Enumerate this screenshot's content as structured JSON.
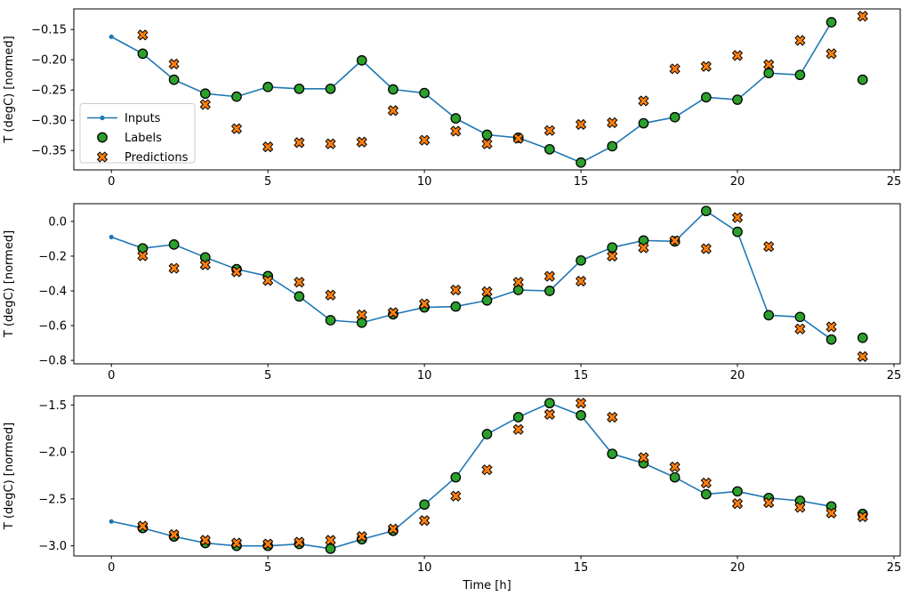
{
  "figure": {
    "xlabel": "Time [h]",
    "ylabel": "T (degC) [normed]",
    "background": "#ffffff",
    "colors": {
      "inputs_line": "#1f77b4",
      "labels_fill": "#2ca02c",
      "predictions_fill": "#ff7f0e",
      "marker_edge": "#000000",
      "axis": "#000000",
      "legend_border": "#cccccc",
      "legend_bg": "#ffffff"
    },
    "legend": {
      "position": "upper-left-of-first-subplot",
      "entries": [
        {
          "label": "Inputs",
          "marker": "line-dot",
          "color": "#1f77b4"
        },
        {
          "label": "Labels",
          "marker": "circle",
          "color": "#2ca02c"
        },
        {
          "label": "Predictions",
          "marker": "X",
          "color": "#ff7f0e"
        }
      ]
    }
  },
  "chart_data": [
    {
      "type": "line",
      "subplot": 1,
      "ylabel": "T (degC) [normed]",
      "xlim": [
        -1.2,
        25.2
      ],
      "ylim": [
        -0.3821,
        -0.1159
      ],
      "xticks": [
        0,
        5,
        10,
        15,
        20,
        25
      ],
      "xtick_labels": [
        "0",
        "5",
        "10",
        "15",
        "20",
        "25"
      ],
      "yticks": [
        -0.15,
        -0.2,
        -0.25,
        -0.3,
        -0.35
      ],
      "ytick_labels": [
        "−0.15",
        "−0.20",
        "−0.25",
        "−0.30",
        "−0.35"
      ],
      "grid": false,
      "series": [
        {
          "name": "Inputs",
          "type": "line",
          "marker": "dot",
          "x": [
            0,
            1,
            2,
            3,
            4,
            5,
            6,
            7,
            8,
            9,
            10,
            11,
            12,
            13,
            14,
            15,
            16,
            17,
            18,
            19,
            20,
            21,
            22,
            23
          ],
          "y": [
            -0.162,
            -0.19,
            -0.233,
            -0.256,
            -0.261,
            -0.245,
            -0.248,
            -0.248,
            -0.201,
            -0.249,
            -0.255,
            -0.297,
            -0.324,
            -0.329,
            -0.348,
            -0.37,
            -0.343,
            -0.305,
            -0.295,
            -0.262,
            -0.266,
            -0.222,
            -0.225,
            -0.138
          ]
        },
        {
          "name": "Labels",
          "type": "scatter",
          "marker": "circle",
          "x": [
            1,
            2,
            3,
            4,
            5,
            6,
            7,
            8,
            9,
            10,
            11,
            12,
            13,
            14,
            15,
            16,
            17,
            18,
            19,
            20,
            21,
            22,
            23,
            24
          ],
          "y": [
            -0.19,
            -0.233,
            -0.256,
            -0.261,
            -0.245,
            -0.248,
            -0.248,
            -0.201,
            -0.249,
            -0.255,
            -0.297,
            -0.324,
            -0.329,
            -0.348,
            -0.37,
            -0.343,
            -0.305,
            -0.295,
            -0.262,
            -0.266,
            -0.222,
            -0.225,
            -0.138,
            -0.233
          ]
        },
        {
          "name": "Predictions",
          "type": "scatter",
          "marker": "X",
          "x": [
            1,
            2,
            3,
            4,
            5,
            6,
            7,
            8,
            9,
            10,
            11,
            12,
            13,
            14,
            15,
            16,
            17,
            18,
            19,
            20,
            21,
            22,
            23,
            24
          ],
          "y": [
            -0.159,
            -0.207,
            -0.274,
            -0.314,
            -0.344,
            -0.337,
            -0.339,
            -0.336,
            -0.284,
            -0.333,
            -0.318,
            -0.339,
            -0.33,
            -0.317,
            -0.307,
            -0.304,
            -0.268,
            -0.215,
            -0.211,
            -0.193,
            -0.208,
            -0.168,
            -0.19,
            -0.128
          ]
        }
      ]
    },
    {
      "type": "line",
      "subplot": 2,
      "ylabel": "T (degC) [normed]",
      "xlim": [
        -1.2,
        25.2
      ],
      "ylim": [
        -0.8199,
        0.1019
      ],
      "xticks": [
        0,
        5,
        10,
        15,
        20,
        25
      ],
      "xtick_labels": [
        "0",
        "5",
        "10",
        "15",
        "20",
        "25"
      ],
      "yticks": [
        0.0,
        -0.2,
        -0.4,
        -0.6,
        -0.8
      ],
      "ytick_labels": [
        "0.0",
        "−0.2",
        "−0.4",
        "−0.6",
        "−0.8"
      ],
      "grid": false,
      "series": [
        {
          "name": "Inputs",
          "type": "line",
          "marker": "dot",
          "x": [
            0,
            1,
            2,
            3,
            4,
            5,
            6,
            7,
            8,
            9,
            10,
            11,
            12,
            13,
            14,
            15,
            16,
            17,
            18,
            19,
            20,
            21,
            22,
            23
          ],
          "y": [
            -0.09,
            -0.155,
            -0.133,
            -0.207,
            -0.275,
            -0.315,
            -0.432,
            -0.569,
            -0.583,
            -0.535,
            -0.495,
            -0.49,
            -0.455,
            -0.395,
            -0.4,
            -0.225,
            -0.15,
            -0.11,
            -0.115,
            0.06,
            -0.06,
            -0.54,
            -0.55,
            -0.68
          ]
        },
        {
          "name": "Labels",
          "type": "scatter",
          "marker": "circle",
          "x": [
            1,
            2,
            3,
            4,
            5,
            6,
            7,
            8,
            9,
            10,
            11,
            12,
            13,
            14,
            15,
            16,
            17,
            18,
            19,
            20,
            21,
            22,
            23,
            24
          ],
          "y": [
            -0.155,
            -0.133,
            -0.207,
            -0.275,
            -0.315,
            -0.432,
            -0.569,
            -0.583,
            -0.535,
            -0.495,
            -0.49,
            -0.455,
            -0.395,
            -0.4,
            -0.225,
            -0.15,
            -0.11,
            -0.115,
            0.06,
            -0.06,
            -0.54,
            -0.55,
            -0.68,
            -0.67
          ]
        },
        {
          "name": "Predictions",
          "type": "scatter",
          "marker": "X",
          "x": [
            1,
            2,
            3,
            4,
            5,
            6,
            7,
            8,
            9,
            10,
            11,
            12,
            13,
            14,
            15,
            16,
            17,
            18,
            19,
            20,
            21,
            22,
            23,
            24
          ],
          "y": [
            -0.198,
            -0.27,
            -0.25,
            -0.29,
            -0.34,
            -0.35,
            -0.424,
            -0.538,
            -0.525,
            -0.475,
            -0.395,
            -0.405,
            -0.35,
            -0.316,
            -0.344,
            -0.2,
            -0.152,
            -0.111,
            -0.157,
            0.022,
            -0.145,
            -0.619,
            -0.607,
            -0.778
          ]
        }
      ]
    },
    {
      "type": "line",
      "subplot": 3,
      "xlabel": "Time [h]",
      "ylabel": "T (degC) [normed]",
      "xlim": [
        -1.2,
        25.2
      ],
      "ylim": [
        -3.1075,
        -1.4025
      ],
      "xticks": [
        0,
        5,
        10,
        15,
        20,
        25
      ],
      "xtick_labels": [
        "0",
        "5",
        "10",
        "15",
        "20",
        "25"
      ],
      "yticks": [
        -1.5,
        -2.0,
        -2.5,
        -3.0
      ],
      "ytick_labels": [
        "−1.5",
        "−2.0",
        "−2.5",
        "−3.0"
      ],
      "grid": false,
      "series": [
        {
          "name": "Inputs",
          "type": "line",
          "marker": "dot",
          "x": [
            0,
            1,
            2,
            3,
            4,
            5,
            6,
            7,
            8,
            9,
            10,
            11,
            12,
            13,
            14,
            15,
            16,
            17,
            18,
            19,
            20,
            21,
            22,
            23
          ],
          "y": [
            -2.74,
            -2.81,
            -2.9,
            -2.97,
            -3.0,
            -3.0,
            -2.98,
            -3.03,
            -2.93,
            -2.84,
            -2.56,
            -2.27,
            -1.81,
            -1.63,
            -1.48,
            -1.61,
            -2.02,
            -2.12,
            -2.27,
            -2.45,
            -2.42,
            -2.49,
            -2.52,
            -2.58
          ]
        },
        {
          "name": "Labels",
          "type": "scatter",
          "marker": "circle",
          "x": [
            1,
            2,
            3,
            4,
            5,
            6,
            7,
            8,
            9,
            10,
            11,
            12,
            13,
            14,
            15,
            16,
            17,
            18,
            19,
            20,
            21,
            22,
            23,
            24
          ],
          "y": [
            -2.81,
            -2.9,
            -2.97,
            -3.0,
            -3.0,
            -2.98,
            -3.03,
            -2.93,
            -2.84,
            -2.56,
            -2.27,
            -1.81,
            -1.63,
            -1.48,
            -1.61,
            -2.02,
            -2.12,
            -2.27,
            -2.45,
            -2.42,
            -2.49,
            -2.52,
            -2.58,
            -2.66
          ]
        },
        {
          "name": "Predictions",
          "type": "scatter",
          "marker": "X",
          "x": [
            1,
            2,
            3,
            4,
            5,
            6,
            7,
            8,
            9,
            10,
            11,
            12,
            13,
            14,
            15,
            16,
            17,
            18,
            19,
            20,
            21,
            22,
            23,
            24
          ],
          "y": [
            -2.79,
            -2.88,
            -2.94,
            -2.97,
            -2.98,
            -2.96,
            -2.94,
            -2.9,
            -2.82,
            -2.73,
            -2.47,
            -2.19,
            -1.76,
            -1.6,
            -1.48,
            -1.63,
            -2.06,
            -2.16,
            -2.33,
            -2.55,
            -2.54,
            -2.59,
            -2.65,
            -2.69
          ]
        }
      ]
    }
  ]
}
